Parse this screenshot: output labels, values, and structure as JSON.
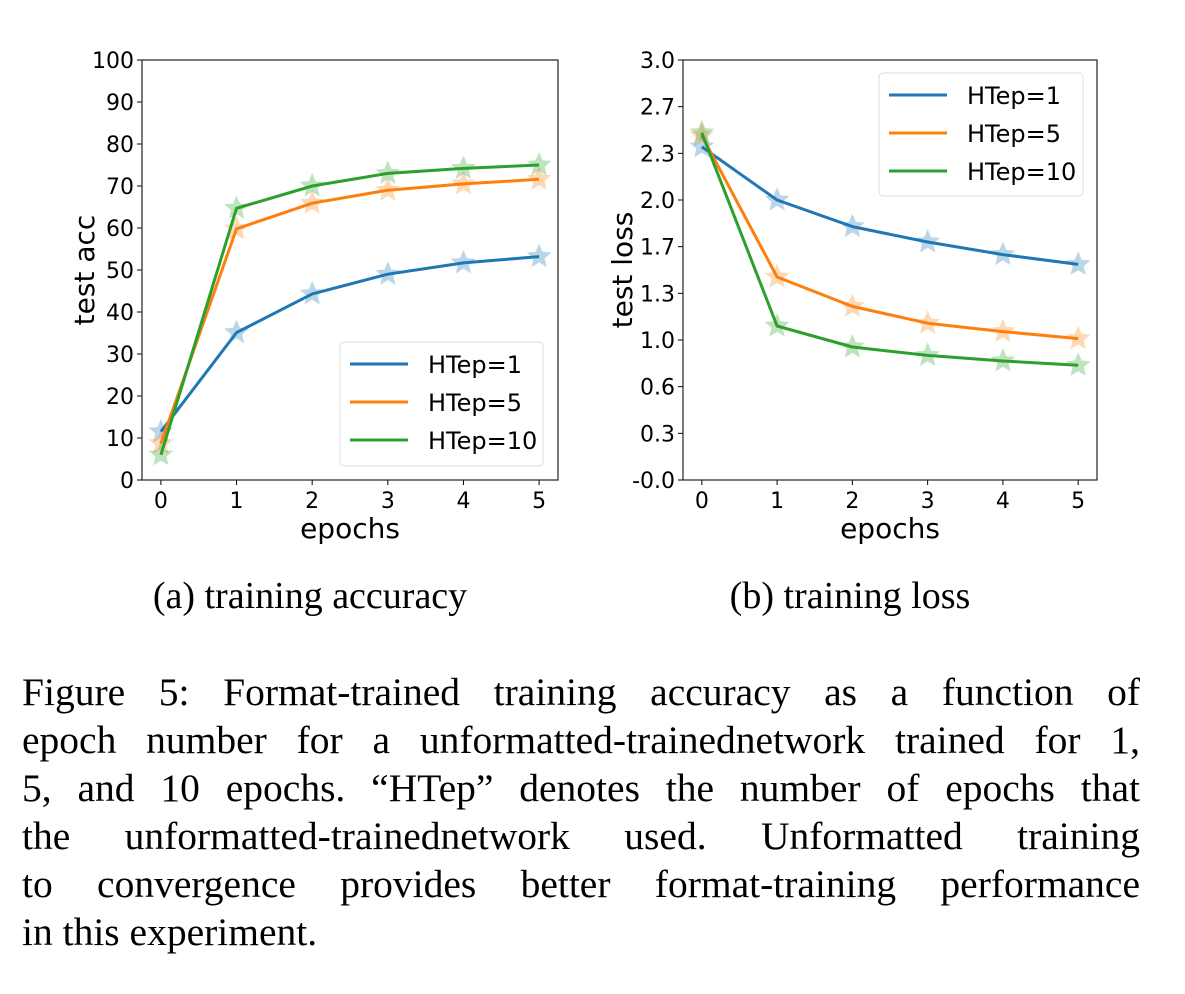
{
  "chart_data": [
    {
      "type": "line",
      "subcaption": "(a) training accuracy",
      "xlabel": "epochs",
      "ylabel": "test acc",
      "x": [
        0,
        1,
        2,
        3,
        4,
        5
      ],
      "xticks": [
        "0",
        "1",
        "2",
        "3",
        "4",
        "5"
      ],
      "yticks": [
        "0",
        "10",
        "20",
        "30",
        "40",
        "50",
        "60",
        "70",
        "80",
        "90",
        "100"
      ],
      "xlim": [
        -0.25,
        5.25
      ],
      "ylim": [
        0,
        100
      ],
      "grid": false,
      "legend_position": "lower-right",
      "marker": "star",
      "series": [
        {
          "name": "HTep=1",
          "color": "#1f77b4",
          "values": [
            11.5,
            35.1,
            44.3,
            49.0,
            51.7,
            53.2
          ]
        },
        {
          "name": "HTep=5",
          "color": "#ff7f0e",
          "values": [
            8.7,
            59.8,
            65.9,
            69.0,
            70.5,
            71.6
          ]
        },
        {
          "name": "HTep=10",
          "color": "#2ca02c",
          "values": [
            6.0,
            64.7,
            70.0,
            73.0,
            74.2,
            75.0
          ]
        }
      ]
    },
    {
      "type": "line",
      "subcaption": "(b) training loss",
      "xlabel": "epochs",
      "ylabel": "test loss",
      "x": [
        0,
        1,
        2,
        3,
        4,
        5
      ],
      "xticks": [
        "0",
        "1",
        "2",
        "3",
        "4",
        "5"
      ],
      "yticks": [
        "-0.0",
        "0.3",
        "0.6",
        "1.0",
        "1.3",
        "1.7",
        "2.0",
        "2.3",
        "2.7",
        "3.0"
      ],
      "xlim": [
        -0.25,
        5.25
      ],
      "ylim": [
        0,
        3
      ],
      "grid": false,
      "legend_position": "upper-right",
      "marker": "star",
      "series": [
        {
          "name": "HTep=1",
          "color": "#1f77b4",
          "values": [
            2.38,
            2.0,
            1.81,
            1.7,
            1.61,
            1.54
          ]
        },
        {
          "name": "HTep=5",
          "color": "#ff7f0e",
          "values": [
            2.46,
            1.45,
            1.24,
            1.12,
            1.06,
            1.01
          ]
        },
        {
          "name": "HTep=10",
          "color": "#2ca02c",
          "values": [
            2.48,
            1.1,
            0.95,
            0.89,
            0.85,
            0.82
          ]
        }
      ]
    }
  ],
  "caption": {
    "lines": [
      "Figure 5: Format-trained training accuracy as a function of",
      "epoch number for a unformatted-trainednetwork trained for 1,",
      "5, and 10 epochs. “HTep” denotes the number of epochs that",
      "the unformatted-trainednetwork used. Unformatted training",
      "to convergence provides better format-training performance",
      "in this experiment."
    ]
  }
}
